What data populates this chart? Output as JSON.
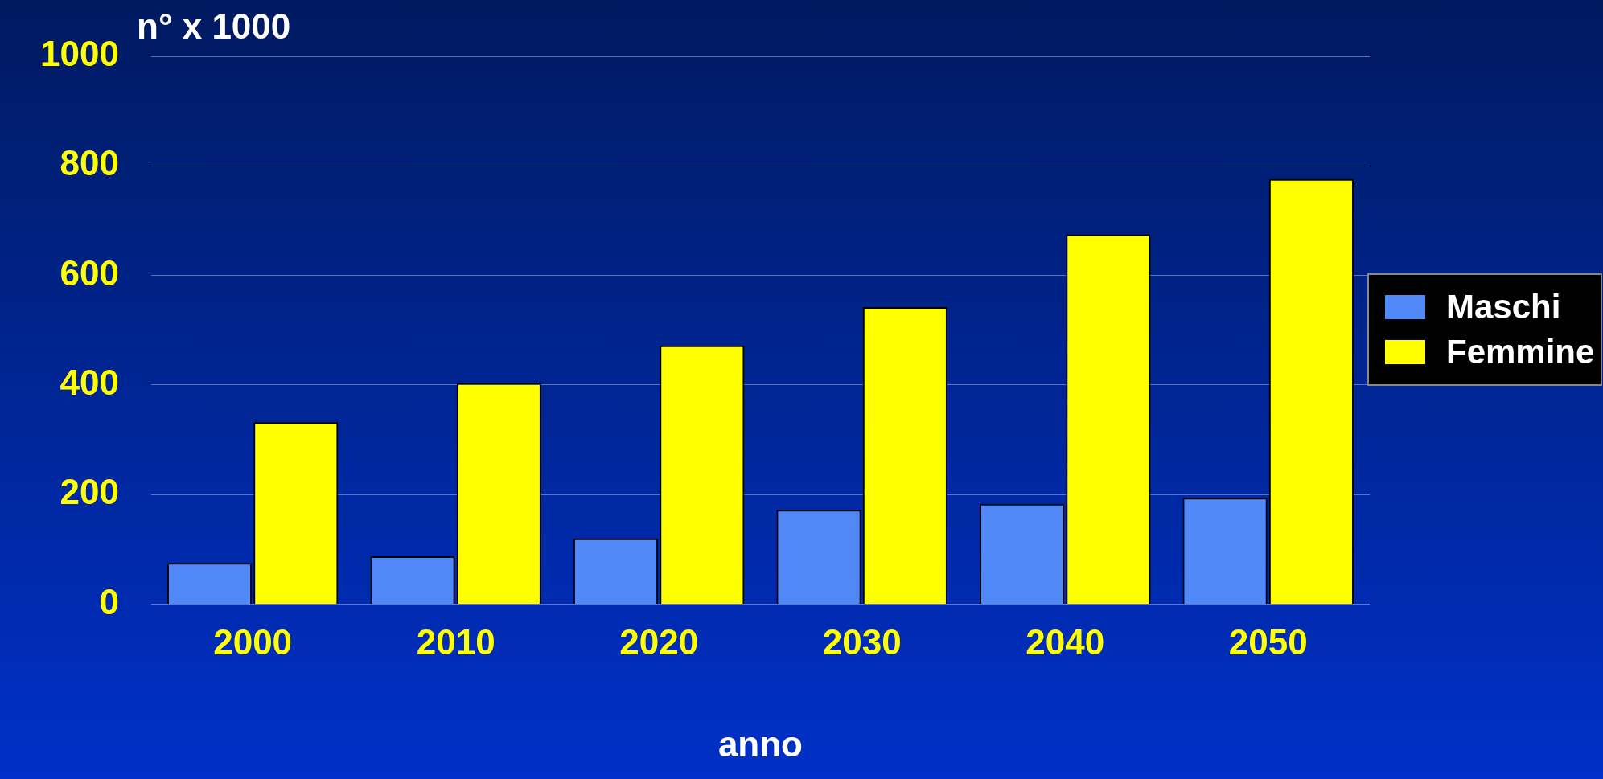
{
  "chart_data": {
    "type": "bar",
    "ylabel": "n° x 1000",
    "xlabel": "anno",
    "categories": [
      "2000",
      "2010",
      "2020",
      "2030",
      "2040",
      "2050"
    ],
    "series": [
      {
        "name": "Maschi",
        "color": "#5088f8",
        "values": [
          75,
          87,
          120,
          172,
          183,
          194
        ]
      },
      {
        "name": "Femmine",
        "color": "#ffff00",
        "values": [
          332,
          403,
          472,
          542,
          675,
          776
        ]
      }
    ],
    "ylim": [
      0,
      1000
    ],
    "yticks": [
      0,
      200,
      400,
      600,
      800,
      1000
    ],
    "grid": "y",
    "legend": "right"
  }
}
